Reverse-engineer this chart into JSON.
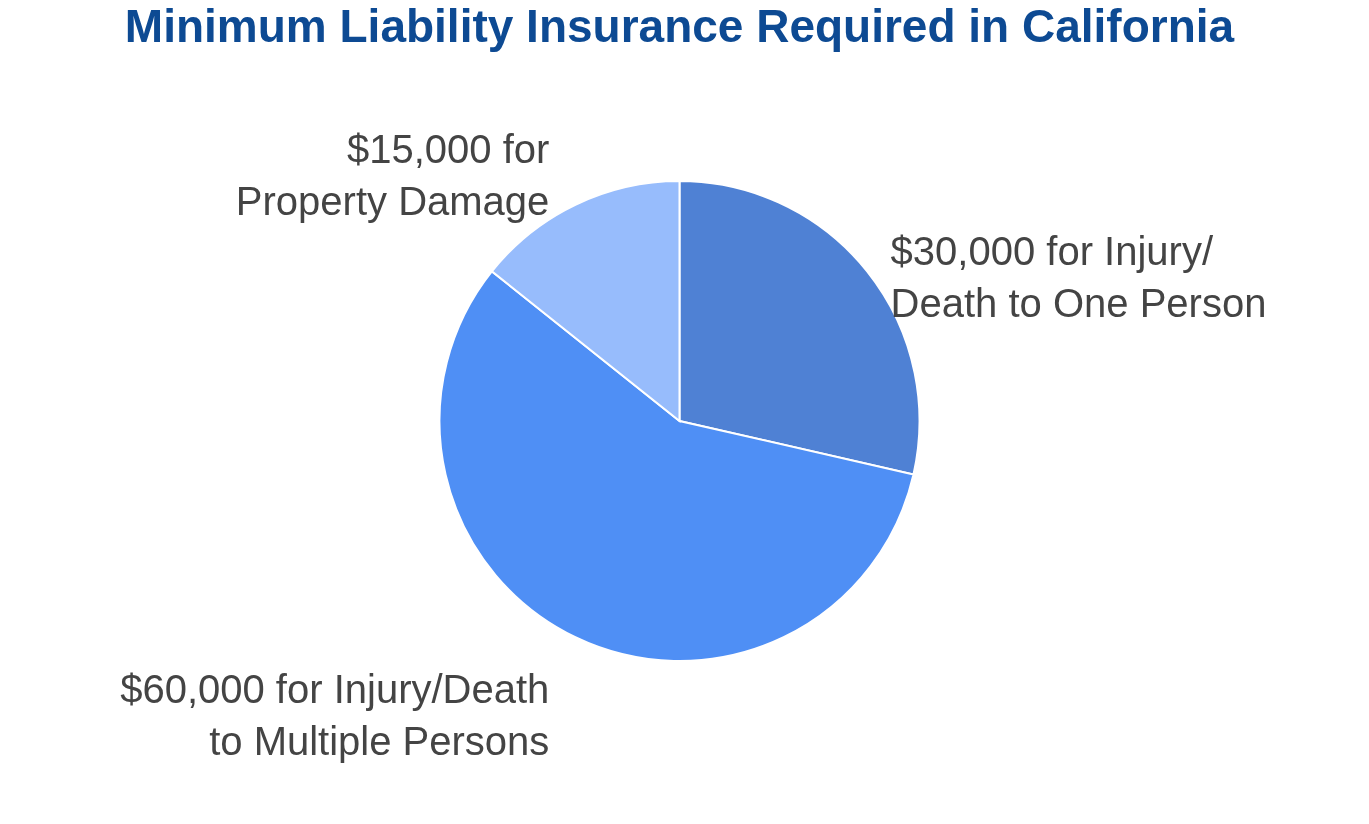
{
  "chart_data": {
    "type": "pie",
    "title": "Minimum Liability Insurance Required in California",
    "categories": [
      "$30,000 for Injury/\nDeath to One Person",
      "$60,000 for Injury/Death\nto Multiple Persons",
      "$15,000 for\nProperty Damage"
    ],
    "values": [
      30000,
      60000,
      15000
    ],
    "colors": [
      "#4f81d4",
      "#4f8ff5",
      "#97bcfc"
    ],
    "legend": false
  }
}
